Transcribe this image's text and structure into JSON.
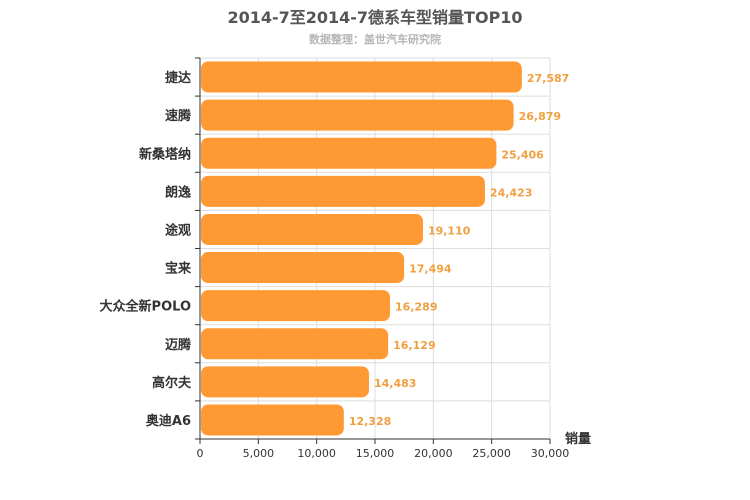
{
  "chart_data": {
    "type": "bar",
    "orientation": "horizontal",
    "title": "2014-7至2014-7德系车型销量TOP10",
    "subtitle": "数据整理：盖世汽车研究院",
    "xlabel": "销量",
    "ylabel": "",
    "categories": [
      "捷达",
      "速腾",
      "新桑塔纳",
      "朗逸",
      "途观",
      "宝来",
      "大众全新POLO",
      "迈腾",
      "高尔夫",
      "奥迪A6"
    ],
    "values": [
      27587,
      26879,
      25406,
      24423,
      19110,
      17494,
      16289,
      16129,
      14483,
      12328
    ],
    "value_labels": [
      "27,587",
      "26,879",
      "25,406",
      "24,423",
      "19,110",
      "17,494",
      "16,289",
      "16,129",
      "14,483",
      "12,328"
    ],
    "xlim": [
      0,
      30000
    ],
    "xticks": [
      0,
      5000,
      10000,
      15000,
      20000,
      25000,
      30000
    ],
    "xtick_labels": [
      "0",
      "5,000",
      "10,000",
      "15,000",
      "20,000",
      "25,000",
      "30,000"
    ],
    "grid": true,
    "legend": "none",
    "colors": {
      "bar": "#ff9933",
      "value_label": "#f0a040",
      "grid": "#dddddd",
      "axis": "#333333"
    }
  }
}
